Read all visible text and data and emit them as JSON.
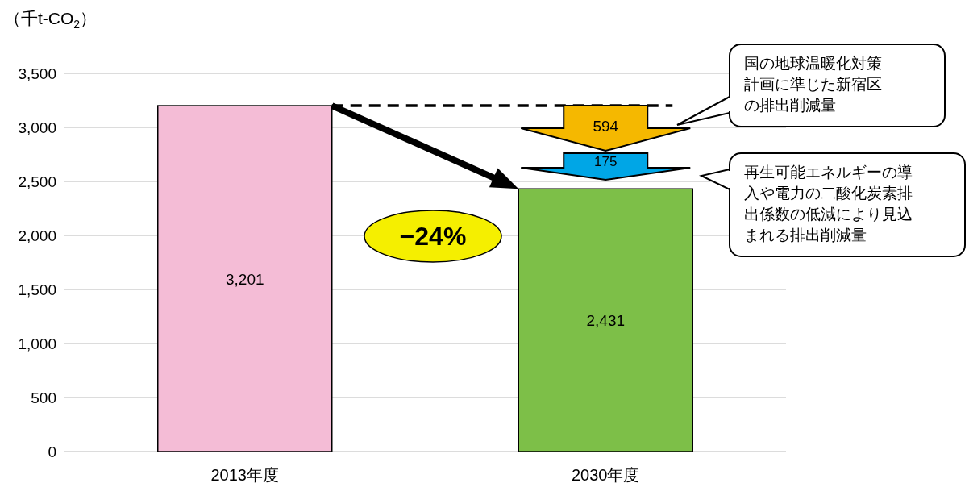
{
  "chart_data": {
    "type": "bar",
    "ylabel": "（千t-CO$_{2}$）",
    "categories": [
      "2013年度",
      "2030年度"
    ],
    "values": [
      3201,
      2431
    ],
    "colors": [
      "#f4bcd6",
      "#7dbf48"
    ],
    "value_labels": [
      "3,201",
      "2,431"
    ],
    "ylim": [
      0,
      3500
    ],
    "yticks": [
      {
        "value": 0,
        "label": "0"
      },
      {
        "value": 500,
        "label": "500"
      },
      {
        "value": 1000,
        "label": "1,000"
      },
      {
        "value": 1500,
        "label": "1,500"
      },
      {
        "value": 2000,
        "label": "2,000"
      },
      {
        "value": 2500,
        "label": "2,500"
      },
      {
        "value": 3000,
        "label": "3,000"
      },
      {
        "value": 3500,
        "label": "3,500"
      }
    ],
    "grid": "y",
    "ref_lines": [
      {
        "axis": "y",
        "value": 3201,
        "line_style": "dashed",
        "color": "#000000"
      }
    ],
    "annotations": [
      "594",
      "175",
      "−24%",
      "国の地球温暖化対策計画に準じた新宿区の排出削減量",
      "再生可能エネルギーの導入や電力の二酸化炭素排出係数の低減により見込まれる排出削減量"
    ]
  }
}
